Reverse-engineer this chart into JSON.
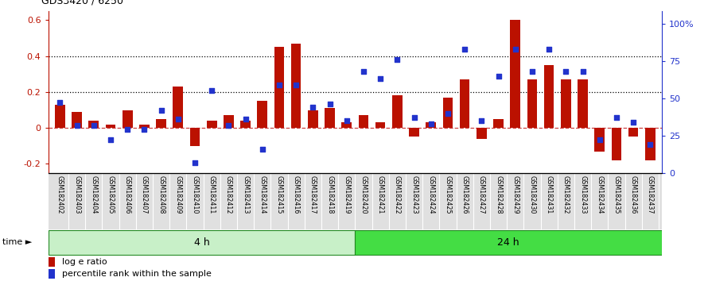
{
  "title": "GDS3420 / 6250",
  "samples": [
    "GSM182402",
    "GSM182403",
    "GSM182404",
    "GSM182405",
    "GSM182406",
    "GSM182407",
    "GSM182408",
    "GSM182409",
    "GSM182410",
    "GSM182411",
    "GSM182412",
    "GSM182413",
    "GSM182414",
    "GSM182415",
    "GSM182416",
    "GSM182417",
    "GSM182418",
    "GSM182419",
    "GSM182420",
    "GSM182421",
    "GSM182422",
    "GSM182423",
    "GSM182424",
    "GSM182425",
    "GSM182426",
    "GSM182427",
    "GSM182428",
    "GSM182429",
    "GSM182430",
    "GSM182431",
    "GSM182432",
    "GSM182433",
    "GSM182434",
    "GSM182435",
    "GSM182436",
    "GSM182437"
  ],
  "log_e_ratio": [
    0.13,
    0.09,
    0.04,
    0.02,
    0.1,
    0.02,
    0.05,
    0.23,
    -0.1,
    0.04,
    0.07,
    0.04,
    0.15,
    0.45,
    0.47,
    0.1,
    0.11,
    0.03,
    0.07,
    0.03,
    0.18,
    -0.05,
    0.03,
    0.17,
    0.27,
    -0.06,
    0.05,
    0.6,
    0.27,
    0.35,
    0.27,
    0.27,
    -0.13,
    -0.18,
    -0.05,
    -0.18
  ],
  "percentile_rank": [
    0.47,
    0.32,
    0.32,
    0.22,
    0.29,
    0.29,
    0.42,
    0.36,
    0.07,
    0.55,
    0.32,
    0.36,
    0.16,
    0.59,
    0.59,
    0.44,
    0.46,
    0.35,
    0.68,
    0.63,
    0.76,
    0.37,
    0.33,
    0.4,
    0.83,
    0.35,
    0.65,
    0.83,
    0.68,
    0.83,
    0.68,
    0.68,
    0.22,
    0.37,
    0.34,
    0.19
  ],
  "group_labels": [
    "4 h",
    "24 h"
  ],
  "group_starts": [
    0,
    18
  ],
  "group_ends": [
    18,
    36
  ],
  "group_color_4h": "#c8f0c8",
  "group_color_24h": "#44dd44",
  "group_edge_color": "#228822",
  "bar_color": "#bb1100",
  "dot_color": "#2233cc",
  "ylim_left": [
    -0.25,
    0.65
  ],
  "ylim_right": [
    0.0,
    1.083
  ],
  "yticks_left": [
    -0.2,
    0.0,
    0.2,
    0.4,
    0.6
  ],
  "ytick_labels_left": [
    "-0.2",
    "0",
    "0.2",
    "0.4",
    "0.6"
  ],
  "yticks_right": [
    0.0,
    0.25,
    0.5,
    0.75,
    1.0
  ],
  "ytick_labels_right": [
    "0",
    "25",
    "50",
    "75",
    "100%"
  ],
  "hline_y": [
    0.2,
    0.4
  ],
  "zero_line_color": "#cc4444",
  "figsize": [
    8.9,
    3.54
  ],
  "dpi": 100
}
